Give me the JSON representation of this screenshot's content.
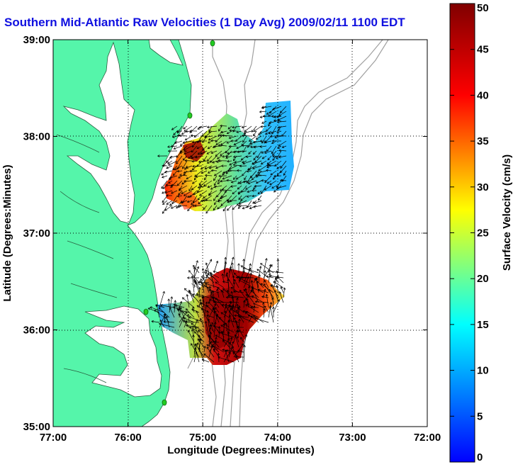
{
  "title": "Southern Mid-Atlantic Raw Velocities (1 Day Avg) 2009/02/11 1100 EDT",
  "x_axis": {
    "label": "Longitude (Degrees:Minutes)",
    "ticks": [
      "77:00",
      "76:00",
      "75:00",
      "74:00",
      "73:00",
      "72:00"
    ],
    "range": [
      -77,
      -72
    ]
  },
  "y_axis": {
    "label": "Latitude (Degrees:Minutes)",
    "ticks": [
      "39:00",
      "38:00",
      "37:00",
      "36:00",
      "35:00"
    ],
    "range": [
      35,
      39
    ]
  },
  "colorbar": {
    "label": "Surface Velocity (cm/s)",
    "ticks": [
      "0",
      "5",
      "10",
      "15",
      "20",
      "25",
      "30",
      "35",
      "40",
      "45",
      "50"
    ],
    "range": [
      0,
      50
    ],
    "colors": [
      "#0000ff",
      "#00ffff",
      "#ffff00",
      "#ff0000",
      "#800000"
    ]
  },
  "colors": {
    "land": "#55f5aa",
    "water": "#ffffff",
    "bathymetry": "#a0a0a0",
    "title": "#1010e0",
    "station": "#22cc22"
  },
  "grid": true,
  "chart_data": {
    "type": "heatmap",
    "title": "Southern Mid-Atlantic Raw Velocities (1 Day Avg) 2009/02/11 1100 EDT",
    "xlabel": "Longitude (Degrees:Minutes)",
    "ylabel": "Latitude (Degrees:Minutes)",
    "xlim": [
      -77,
      -72
    ],
    "ylim": [
      35,
      39
    ],
    "colorbar_label": "Surface Velocity (cm/s)",
    "colorbar_range": [
      0,
      50
    ],
    "regions": [
      {
        "name": "northern",
        "lon": [
          -75.4,
          -74.2
        ],
        "lat": [
          37.2,
          38.35
        ],
        "typical_speed_cm_s": [
          5,
          30
        ],
        "max_speed_cm_s": 50
      },
      {
        "name": "southern",
        "lon": [
          -75.6,
          -74.1
        ],
        "lat": [
          35.65,
          36.6
        ],
        "typical_speed_cm_s": [
          10,
          50
        ],
        "max_speed_cm_s": 50
      }
    ]
  }
}
